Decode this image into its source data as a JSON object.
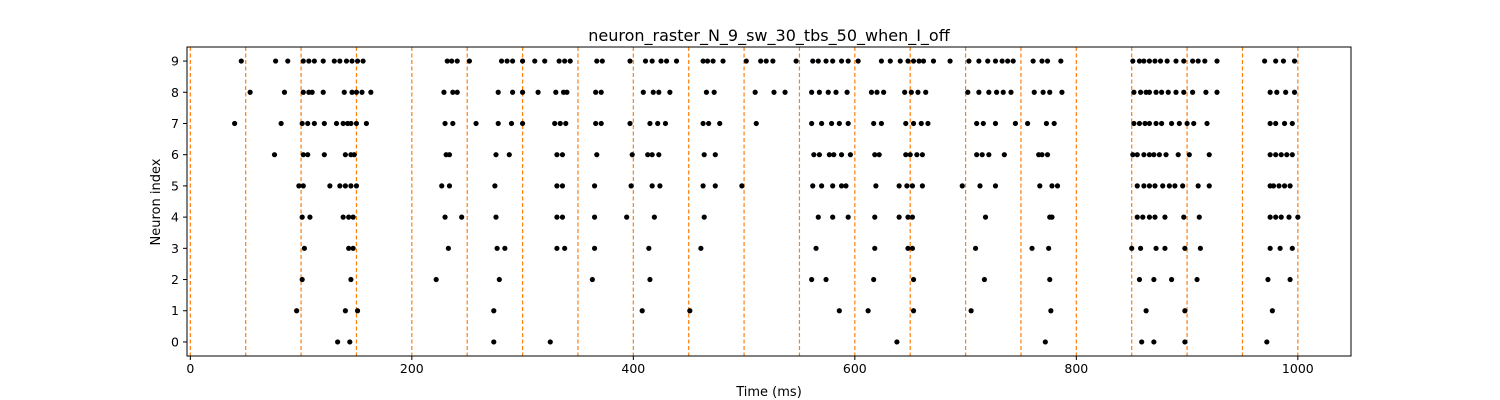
{
  "chart_data": {
    "type": "scatter",
    "title": "neuron_raster_N_9_sw_30_tbs_50_when_I_off",
    "xlabel": "Time (ms)",
    "ylabel": "Neuron index",
    "xlim": [
      -3,
      1048
    ],
    "ylim": [
      -0.45,
      9.45
    ],
    "x_ticks": [
      0,
      200,
      400,
      600,
      800,
      1000
    ],
    "y_ticks": [
      0,
      1,
      2,
      3,
      4,
      5,
      6,
      7,
      8,
      9
    ],
    "grid": false,
    "legend": "none",
    "marker_color": "#000000",
    "vline_color": "#ff7f0e",
    "vlines_x": [
      0,
      50,
      100,
      150,
      200,
      250,
      300,
      350,
      400,
      450,
      500,
      550,
      600,
      650,
      700,
      750,
      800,
      850,
      900,
      950,
      1000
    ],
    "series": [
      {
        "neuron": 0,
        "spikes_ms": [
          133,
          144,
          274,
          325,
          638,
          772,
          859,
          870,
          898,
          972
        ]
      },
      {
        "neuron": 1,
        "spikes_ms": [
          96,
          140,
          151,
          274,
          408,
          451,
          586,
          612,
          653,
          705,
          777,
          863,
          898,
          977
        ]
      },
      {
        "neuron": 2,
        "spikes_ms": [
          101,
          145,
          222,
          279,
          363,
          415,
          561,
          574,
          617,
          653,
          717,
          776,
          857,
          870,
          886,
          909,
          973,
          993
        ]
      },
      {
        "neuron": 3,
        "spikes_ms": [
          103,
          143,
          147,
          233,
          277,
          284,
          331,
          338,
          365,
          414,
          461,
          565,
          618,
          648,
          652,
          709,
          760,
          775,
          850,
          858,
          872,
          880,
          898,
          912,
          975,
          984,
          995
        ]
      },
      {
        "neuron": 4,
        "spikes_ms": [
          101,
          108,
          138,
          143,
          147,
          230,
          245,
          276,
          331,
          336,
          365,
          394,
          419,
          464,
          567,
          580,
          594,
          618,
          640,
          648,
          652,
          718,
          776,
          778,
          855,
          860,
          866,
          871,
          880,
          897,
          911,
          975,
          980,
          985,
          992,
          1000
        ]
      },
      {
        "neuron": 5,
        "spikes_ms": [
          98,
          102,
          126,
          135,
          140,
          145,
          150,
          227,
          234,
          275,
          331,
          336,
          365,
          398,
          417,
          424,
          463,
          474,
          498,
          562,
          570,
          580,
          588,
          592,
          619,
          640,
          647,
          652,
          661,
          697,
          713,
          727,
          767,
          778,
          783,
          855,
          861,
          866,
          871,
          878,
          884,
          889,
          896,
          910,
          920,
          975,
          978,
          983,
          988,
          993
        ]
      },
      {
        "neuron": 6,
        "spikes_ms": [
          76,
          102,
          106,
          121,
          140,
          145,
          148,
          231,
          234,
          276,
          288,
          331,
          336,
          367,
          399,
          413,
          417,
          423,
          464,
          474,
          563,
          568,
          577,
          581,
          588,
          596,
          618,
          622,
          646,
          650,
          656,
          661,
          710,
          715,
          721,
          735,
          766,
          769,
          774,
          851,
          855,
          861,
          866,
          870,
          875,
          881,
          892,
          902,
          920,
          975,
          980,
          985,
          990,
          995
        ]
      },
      {
        "neuron": 7,
        "spikes_ms": [
          40,
          82,
          101,
          106,
          112,
          121,
          132,
          138,
          142,
          145,
          150,
          159,
          230,
          237,
          258,
          278,
          290,
          300,
          329,
          334,
          339,
          366,
          371,
          397,
          415,
          422,
          429,
          463,
          468,
          478,
          511,
          561,
          570,
          579,
          586,
          594,
          617,
          624,
          646,
          653,
          660,
          666,
          710,
          716,
          727,
          745,
          756,
          773,
          780,
          852,
          857,
          862,
          866,
          872,
          877,
          886,
          893,
          900,
          906,
          918,
          975,
          980,
          988,
          995
        ]
      },
      {
        "neuron": 8,
        "spikes_ms": [
          54,
          85,
          102,
          107,
          110,
          120,
          139,
          146,
          150,
          155,
          163,
          229,
          237,
          241,
          278,
          291,
          300,
          314,
          330,
          337,
          340,
          366,
          371,
          409,
          418,
          423,
          433,
          466,
          473,
          510,
          527,
          537,
          561,
          568,
          576,
          583,
          593,
          615,
          620,
          626,
          645,
          651,
          657,
          664,
          702,
          712,
          721,
          728,
          734,
          741,
          762,
          770,
          776,
          787,
          852,
          858,
          863,
          866,
          872,
          877,
          883,
          890,
          897,
          905,
          917,
          927,
          975,
          981,
          989,
          997
        ]
      },
      {
        "neuron": 9,
        "spikes_ms": [
          46,
          77,
          88,
          102,
          107,
          112,
          120,
          130,
          135,
          141,
          146,
          151,
          156,
          232,
          236,
          241,
          252,
          281,
          286,
          291,
          300,
          311,
          320,
          333,
          338,
          343,
          367,
          372,
          397,
          411,
          417,
          425,
          430,
          439,
          463,
          467,
          472,
          481,
          502,
          515,
          520,
          526,
          547,
          562,
          567,
          574,
          580,
          588,
          594,
          603,
          624,
          632,
          641,
          648,
          653,
          658,
          662,
          671,
          686,
          703,
          712,
          720,
          727,
          733,
          738,
          743,
          761,
          769,
          774,
          786,
          851,
          857,
          861,
          866,
          871,
          876,
          882,
          890,
          897,
          905,
          910,
          916,
          927,
          970,
          980,
          987,
          997
        ]
      }
    ]
  }
}
